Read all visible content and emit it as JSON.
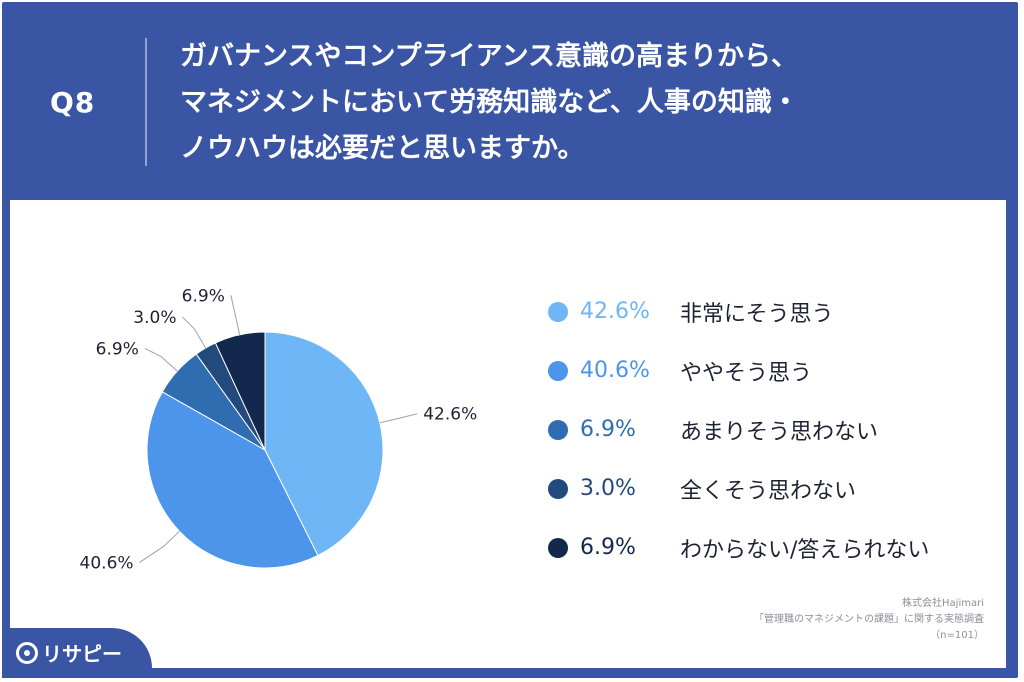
{
  "header": {
    "question_number": "Q8",
    "title_lines": [
      "ガバナンスやコンプライアンス意識の高まりから、",
      "マネジメントにおいて労務知識など、人事の知識・",
      "ノウハウは必要だと思いますか。"
    ]
  },
  "chart_data": {
    "type": "pie",
    "slices": [
      {
        "label": "非常にそう思う",
        "value": 42.6,
        "display": "42.6%",
        "color": "#6fb6f6"
      },
      {
        "label": "ややそう思う",
        "value": 40.6,
        "display": "40.6%",
        "color": "#4c95ea"
      },
      {
        "label": "あまりそう思わない",
        "value": 6.9,
        "display": "6.9%",
        "color": "#2f6db0"
      },
      {
        "label": "全くそう思わない",
        "value": 3.0,
        "display": "3.0%",
        "color": "#224a7c"
      },
      {
        "label": "わからない/答えられない",
        "value": 6.9,
        "display": "6.9%",
        "color": "#13284d"
      }
    ],
    "start": "12 o'clock",
    "direction": "clockwise",
    "legend_position": "right"
  },
  "source": {
    "lines": [
      "株式会社Hajimari",
      "「管理職のマネジメントの課題」に関する実態調査",
      "（n=101）"
    ]
  },
  "brand": {
    "logo_text": "リサピー"
  },
  "colors": {
    "panel": "#3a55a3",
    "text_dark": "#1d2333"
  }
}
